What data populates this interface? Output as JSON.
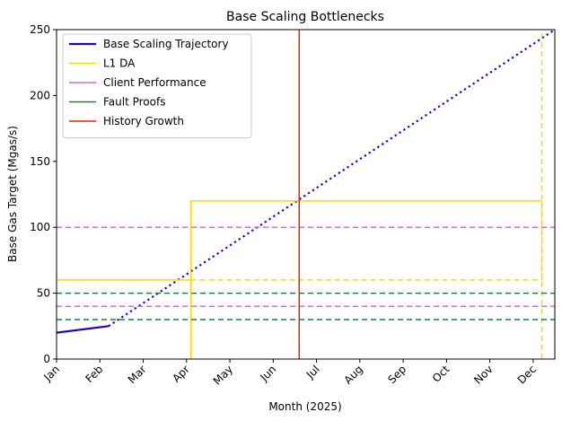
{
  "chart_data": {
    "type": "line",
    "title": "Base Scaling Bottlenecks",
    "xlabel": "Month (2025)",
    "ylabel": "Base Gas Target (Mgas/s)",
    "xlim": [
      0,
      11.5
    ],
    "ylim": [
      0,
      250
    ],
    "x_ticks": [
      0,
      1,
      2,
      3,
      4,
      5,
      6,
      7,
      8,
      9,
      10,
      11
    ],
    "x_tick_labels": [
      "Jan",
      "Feb",
      "Mar",
      "Apr",
      "May",
      "Jun",
      "Jul",
      "Aug",
      "Sep",
      "Oct",
      "Nov",
      "Dec"
    ],
    "y_ticks": [
      0,
      50,
      100,
      150,
      200,
      250
    ],
    "grid": false,
    "legend_position": "top-left",
    "series": [
      {
        "name": "Base Scaling Trajectory",
        "color": "#2200cc",
        "segments": [
          {
            "style": "solid",
            "x": [
              0,
              1.2
            ],
            "y": [
              20,
              25
            ]
          },
          {
            "style": "dotted",
            "x": [
              1.2,
              11.5
            ],
            "y": [
              25,
              250
            ]
          }
        ]
      },
      {
        "name": "L1 DA",
        "color": "#ffd700",
        "segments": [
          {
            "style": "solid",
            "x": [
              0,
              3.1,
              3.1,
              11.2
            ],
            "y": [
              60,
              60,
              120,
              120
            ]
          },
          {
            "style": "solid",
            "x": [
              3.1,
              3.1
            ],
            "y": [
              0,
              60
            ]
          },
          {
            "style": "dashed",
            "x": [
              3.1,
              11.2,
              11.2
            ],
            "y": [
              60,
              60,
              250
            ]
          },
          {
            "style": "dashed",
            "x": [
              11.2,
              11.2
            ],
            "y": [
              0,
              120
            ]
          }
        ]
      },
      {
        "name": "Client Performance",
        "color": "#e066d8",
        "segments": [
          {
            "style": "dashed",
            "x": [
              0,
              11.5
            ],
            "y": [
              100,
              100
            ]
          },
          {
            "style": "dashed",
            "x": [
              0,
              11.5
            ],
            "y": [
              40,
              40
            ]
          }
        ]
      },
      {
        "name": "Fault Proofs",
        "color": "#1a8040",
        "segments": [
          {
            "style": "dashed",
            "x": [
              0,
              11.5
            ],
            "y": [
              50,
              50
            ]
          },
          {
            "style": "dashed",
            "x": [
              0,
              11.5
            ],
            "y": [
              30,
              30
            ]
          }
        ]
      },
      {
        "name": "History Growth",
        "color": "#ee2200",
        "segments": [
          {
            "style": "solid",
            "x": [
              5.6,
              5.6
            ],
            "y": [
              0,
              250
            ]
          }
        ]
      }
    ]
  }
}
